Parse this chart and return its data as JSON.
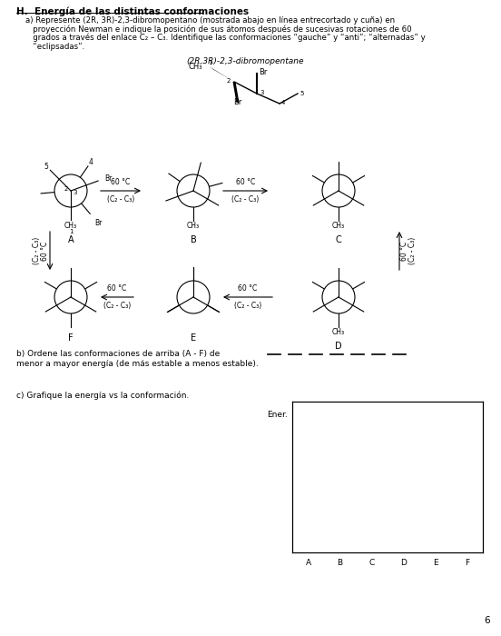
{
  "title": "H.  Energía de las distintas conformaciones",
  "compound_name": "(2R,3R)-2,3-dibromopentane",
  "subtitle_b1": "b) Ordene las conformaciones de arriba (A - F) de",
  "subtitle_b2": "menor a mayor energía (de más estable a menos estable).",
  "subtitle_c": "c) Grafique la energía vs la conformación.",
  "ener_label": "Ener.",
  "x_labels": [
    "A",
    "B",
    "C",
    "D",
    "E",
    "F"
  ],
  "page_num": "6",
  "bg_color": "#ffffff",
  "text_color": "#000000",
  "arrow_label": "60 °C",
  "arrow_sublabel": "(C₂ - C₃)",
  "subtitle_a_lines": [
    "a) Represente (2R, 3R)-2,3-dibromopentano (mostrada abajo en línea entrecortado y cuña) en",
    "   proyección Newman e indique la posición de sus átomos después de sucesivas rotaciones de 60",
    "   grados a través del enlace C₂ – C₃. Identifique las conformaciones “gauche” y “anti”; “alternadas” y",
    "   “eclipsadas”."
  ]
}
